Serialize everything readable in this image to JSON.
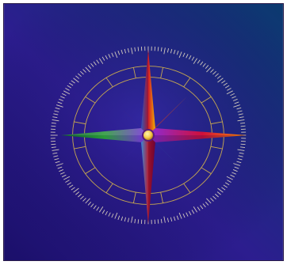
{
  "image": {
    "subject": "compass-rose",
    "background_colors": [
      "#2b1a8c",
      "#0b2f6e",
      "#1a0c5a"
    ],
    "dial_color": "#f0e6c8",
    "ring_color": "#d8b64a",
    "center_color": "#f4c94a",
    "point_colors": {
      "north": [
        "#3b6de0",
        "#d11a2a",
        "#f0b000"
      ],
      "south": [
        "#3a8ad8",
        "#c01424",
        "#8b0030"
      ],
      "east": [
        "#8a2bd8",
        "#ff8a00",
        "#d0103a"
      ],
      "west": [
        "#2a9a3a",
        "#7a2be0",
        "#0b5a2a"
      ],
      "diagonals": [
        "#ff6a00",
        "#3fa0ff",
        "#b020d0",
        "#8a1830"
      ]
    }
  }
}
